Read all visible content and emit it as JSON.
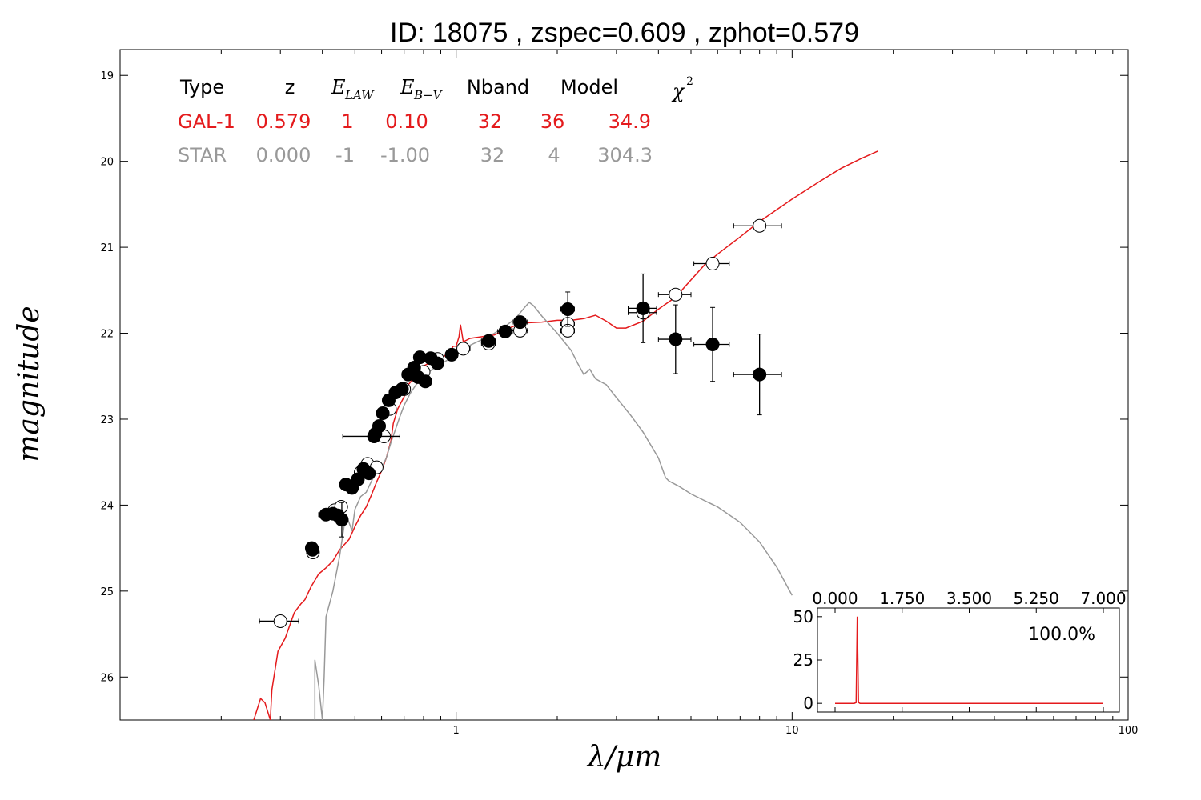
{
  "chart_data": [
    {
      "type": "scatter",
      "title": "ID:  18075 , zspec=0.609 , zphot=0.579",
      "xlabel": "λ/μm",
      "ylabel": "magnitude",
      "xscale": "log",
      "xlim": [
        0.1,
        100
      ],
      "ylim": [
        26.5,
        18.7
      ],
      "y_inverted": true,
      "xticks": [
        {
          "value": 1,
          "label": "1"
        },
        {
          "value": 10,
          "label": "10"
        },
        {
          "value": 100,
          "label": "100"
        }
      ],
      "yticks": [
        {
          "value": 19,
          "label": "19"
        },
        {
          "value": 20,
          "label": "20"
        },
        {
          "value": 21,
          "label": "21"
        },
        {
          "value": 22,
          "label": "22"
        },
        {
          "value": 23,
          "label": "23"
        },
        {
          "value": 24,
          "label": "24"
        },
        {
          "value": 25,
          "label": "25"
        },
        {
          "value": 26,
          "label": "26"
        }
      ],
      "grid": false,
      "fit_table": {
        "headers": [
          "Type",
          "z",
          "E_LAW",
          "E_B−V",
          "Nband",
          "Model",
          "χ²"
        ],
        "rows": [
          {
            "type": "GAL-1",
            "z": "0.579",
            "elaw": "1",
            "ebv": "0.10",
            "nband": "32",
            "model": "36",
            "chi2": "34.9"
          },
          {
            "type": "STAR",
            "z": "0.000",
            "elaw": "-1",
            "ebv": "-1.00",
            "nband": "32",
            "model": "4",
            "chi2": "304.3"
          }
        ]
      },
      "series": [
        {
          "name": "GAL-1",
          "kind": "line",
          "color": "#e41a1c",
          "points": [
            [
              0.25,
              26.5
            ],
            [
              0.262,
              26.25
            ],
            [
              0.27,
              26.3
            ],
            [
              0.28,
              26.5
            ],
            [
              0.283,
              26.15
            ],
            [
              0.295,
              25.7
            ],
            [
              0.31,
              25.55
            ],
            [
              0.33,
              25.25
            ],
            [
              0.345,
              25.15
            ],
            [
              0.355,
              25.1
            ],
            [
              0.37,
              24.95
            ],
            [
              0.39,
              24.8
            ],
            [
              0.41,
              24.73
            ],
            [
              0.43,
              24.65
            ],
            [
              0.45,
              24.52
            ],
            [
              0.48,
              24.4
            ],
            [
              0.5,
              24.25
            ],
            [
              0.52,
              24.12
            ],
            [
              0.54,
              24.02
            ],
            [
              0.56,
              23.88
            ],
            [
              0.58,
              23.73
            ],
            [
              0.6,
              23.6
            ],
            [
              0.62,
              23.45
            ],
            [
              0.64,
              23.25
            ],
            [
              0.65,
              23.05
            ],
            [
              0.67,
              22.88
            ],
            [
              0.7,
              22.74
            ],
            [
              0.72,
              22.6
            ],
            [
              0.75,
              22.52
            ],
            [
              0.78,
              22.44
            ],
            [
              0.8,
              22.38
            ],
            [
              0.83,
              22.35
            ],
            [
              0.86,
              22.36
            ],
            [
              0.89,
              22.31
            ],
            [
              0.92,
              22.27
            ],
            [
              0.94,
              22.24
            ],
            [
              0.96,
              22.22
            ],
            [
              0.98,
              22.15
            ],
            [
              1.0,
              22.15
            ],
            [
              1.02,
              22.04
            ],
            [
              1.03,
              21.9
            ],
            [
              1.05,
              22.1
            ],
            [
              1.1,
              22.06
            ],
            [
              1.2,
              22.04
            ],
            [
              1.3,
              22.02
            ],
            [
              1.4,
              21.96
            ],
            [
              1.5,
              21.91
            ],
            [
              1.6,
              21.88
            ],
            [
              1.8,
              21.87
            ],
            [
              2.0,
              21.85
            ],
            [
              2.2,
              21.85
            ],
            [
              2.4,
              21.83
            ],
            [
              2.6,
              21.79
            ],
            [
              2.8,
              21.86
            ],
            [
              3.0,
              21.94
            ],
            [
              3.2,
              21.94
            ],
            [
              3.6,
              21.86
            ],
            [
              4.0,
              21.72
            ],
            [
              4.5,
              21.58
            ],
            [
              5.0,
              21.38
            ],
            [
              5.5,
              21.2
            ],
            [
              6.0,
              21.08
            ],
            [
              7.0,
              20.88
            ],
            [
              8.0,
              20.7
            ],
            [
              10.0,
              20.44
            ],
            [
              12.0,
              20.24
            ],
            [
              14.0,
              20.08
            ],
            [
              16.0,
              19.97
            ],
            [
              18.0,
              19.88
            ]
          ]
        },
        {
          "name": "STAR",
          "kind": "line",
          "color": "#999999",
          "points": [
            [
              0.38,
              26.5
            ],
            [
              0.38,
              25.8
            ],
            [
              0.39,
              26.1
            ],
            [
              0.4,
              26.5
            ],
            [
              0.405,
              26.0
            ],
            [
              0.41,
              25.3
            ],
            [
              0.43,
              25.0
            ],
            [
              0.45,
              24.6
            ],
            [
              0.47,
              24.1
            ],
            [
              0.49,
              24.3
            ],
            [
              0.5,
              24.05
            ],
            [
              0.52,
              23.9
            ],
            [
              0.54,
              23.85
            ],
            [
              0.56,
              23.72
            ],
            [
              0.58,
              23.62
            ],
            [
              0.6,
              23.57
            ],
            [
              0.62,
              23.45
            ],
            [
              0.64,
              23.27
            ],
            [
              0.66,
              23.12
            ],
            [
              0.68,
              22.97
            ],
            [
              0.7,
              22.84
            ],
            [
              0.73,
              22.7
            ],
            [
              0.76,
              22.6
            ],
            [
              0.8,
              22.5
            ],
            [
              0.85,
              22.42
            ],
            [
              0.9,
              22.36
            ],
            [
              1.0,
              22.25
            ],
            [
              1.1,
              22.14
            ],
            [
              1.2,
              22.07
            ],
            [
              1.3,
              22.0
            ],
            [
              1.4,
              21.92
            ],
            [
              1.5,
              21.83
            ],
            [
              1.6,
              21.7
            ],
            [
              1.65,
              21.64
            ],
            [
              1.7,
              21.68
            ],
            [
              1.8,
              21.8
            ],
            [
              2.0,
              22.0
            ],
            [
              2.2,
              22.2
            ],
            [
              2.3,
              22.35
            ],
            [
              2.4,
              22.48
            ],
            [
              2.5,
              22.42
            ],
            [
              2.6,
              22.53
            ],
            [
              2.8,
              22.6
            ],
            [
              3.0,
              22.75
            ],
            [
              3.3,
              22.95
            ],
            [
              3.6,
              23.15
            ],
            [
              4.0,
              23.45
            ],
            [
              4.2,
              23.68
            ],
            [
              4.3,
              23.72
            ],
            [
              4.6,
              23.78
            ],
            [
              5.0,
              23.87
            ],
            [
              5.5,
              23.95
            ],
            [
              6.0,
              24.02
            ],
            [
              7.0,
              24.2
            ],
            [
              8.0,
              24.43
            ],
            [
              9.0,
              24.72
            ],
            [
              10.0,
              25.05
            ]
          ]
        },
        {
          "name": "observed",
          "kind": "points",
          "marker": "filled",
          "color": "#000000",
          "points": [
            {
              "x": 0.372,
              "y": 24.5,
              "xerr": 0,
              "yerr": 0.05
            },
            {
              "x": 0.374,
              "y": 24.52,
              "xerr": 0,
              "yerr": 0.05
            },
            {
              "x": 0.41,
              "y": 24.11,
              "xerr": 0.02,
              "yerr": 0.05
            },
            {
              "x": 0.43,
              "y": 24.1,
              "xerr": 0.015,
              "yerr": 0.05
            },
            {
              "x": 0.445,
              "y": 24.12,
              "xerr": 0.015,
              "yerr": 0.06
            },
            {
              "x": 0.457,
              "y": 24.17,
              "xerr": 0.01,
              "yerr": 0.2
            },
            {
              "x": 0.47,
              "y": 23.76,
              "xerr": 0.01,
              "yerr": 0.05
            },
            {
              "x": 0.49,
              "y": 23.8,
              "xerr": 0.01,
              "yerr": 0.05
            },
            {
              "x": 0.51,
              "y": 23.7,
              "xerr": 0.01,
              "yerr": 0.05
            },
            {
              "x": 0.53,
              "y": 23.58,
              "xerr": 0.01,
              "yerr": 0.05
            },
            {
              "x": 0.55,
              "y": 23.63,
              "xerr": 0.01,
              "yerr": 0.05
            },
            {
              "x": 0.57,
              "y": 23.2,
              "xerr": 0.11,
              "yerr": 0.02
            },
            {
              "x": 0.575,
              "y": 23.17,
              "xerr": 0.01,
              "yerr": 0.05
            },
            {
              "x": 0.59,
              "y": 23.08,
              "xerr": 0.01,
              "yerr": 0.05
            },
            {
              "x": 0.605,
              "y": 22.93,
              "xerr": 0.01,
              "yerr": 0.05
            },
            {
              "x": 0.63,
              "y": 22.78,
              "xerr": 0.01,
              "yerr": 0.05
            },
            {
              "x": 0.66,
              "y": 22.69,
              "xerr": 0.01,
              "yerr": 0.05
            },
            {
              "x": 0.69,
              "y": 22.65,
              "xerr": 0.01,
              "yerr": 0.05
            },
            {
              "x": 0.72,
              "y": 22.48,
              "xerr": 0.02,
              "yerr": 0.05
            },
            {
              "x": 0.75,
              "y": 22.4,
              "xerr": 0.02,
              "yerr": 0.05
            },
            {
              "x": 0.77,
              "y": 22.51,
              "xerr": 0.02,
              "yerr": 0.05
            },
            {
              "x": 0.78,
              "y": 22.28,
              "xerr": 0.02,
              "yerr": 0.05
            },
            {
              "x": 0.81,
              "y": 22.56,
              "xerr": 0.02,
              "yerr": 0.05
            },
            {
              "x": 0.84,
              "y": 22.29,
              "xerr": 0.02,
              "yerr": 0.05
            },
            {
              "x": 0.88,
              "y": 22.35,
              "xerr": 0.03,
              "yerr": 0.05
            },
            {
              "x": 0.97,
              "y": 22.25,
              "xerr": 0.04,
              "yerr": 0.05
            },
            {
              "x": 1.25,
              "y": 22.09,
              "xerr": 0.06,
              "yerr": 0.05
            },
            {
              "x": 1.4,
              "y": 21.98,
              "xerr": 0.07,
              "yerr": 0.05
            },
            {
              "x": 1.55,
              "y": 21.87,
              "xerr": 0.08,
              "yerr": 0.05
            },
            {
              "x": 2.15,
              "y": 21.72,
              "xerr": 0.1,
              "yerr": 0.2
            },
            {
              "x": 3.6,
              "y": 21.71,
              "xerr": 0.35,
              "yerr": 0.4
            },
            {
              "x": 4.5,
              "y": 22.07,
              "xerr": 0.5,
              "yerr": 0.4
            },
            {
              "x": 5.8,
              "y": 22.13,
              "xerr": 0.7,
              "yerr": 0.43
            },
            {
              "x": 8.0,
              "y": 22.48,
              "xerr": 1.3,
              "yerr": 0.47
            }
          ]
        },
        {
          "name": "model",
          "kind": "points",
          "marker": "open",
          "color": "#000000",
          "points": [
            {
              "x": 0.3,
              "y": 25.35,
              "xerr": 0.04,
              "yerr": 0
            },
            {
              "x": 0.375,
              "y": 24.55,
              "xerr": 0,
              "yerr": 0
            },
            {
              "x": 0.435,
              "y": 24.06,
              "xerr": 0.02,
              "yerr": 0
            },
            {
              "x": 0.455,
              "y": 24.02,
              "xerr": 0.015,
              "yerr": 0
            },
            {
              "x": 0.52,
              "y": 23.62,
              "xerr": 0.01,
              "yerr": 0
            },
            {
              "x": 0.545,
              "y": 23.52,
              "xerr": 0.01,
              "yerr": 0
            },
            {
              "x": 0.58,
              "y": 23.56,
              "xerr": 0.01,
              "yerr": 0
            },
            {
              "x": 0.61,
              "y": 23.2,
              "xerr": 0.01,
              "yerr": 0
            },
            {
              "x": 0.635,
              "y": 22.88,
              "xerr": 0.01,
              "yerr": 0
            },
            {
              "x": 0.7,
              "y": 22.65,
              "xerr": 0.01,
              "yerr": 0
            },
            {
              "x": 0.8,
              "y": 22.45,
              "xerr": 0.02,
              "yerr": 0
            },
            {
              "x": 0.88,
              "y": 22.3,
              "xerr": 0.02,
              "yerr": 0
            },
            {
              "x": 1.05,
              "y": 22.18,
              "xerr": 0.05,
              "yerr": 0
            },
            {
              "x": 1.25,
              "y": 22.12,
              "xerr": 0.06,
              "yerr": 0
            },
            {
              "x": 1.55,
              "y": 21.97,
              "xerr": 0.08,
              "yerr": 0
            },
            {
              "x": 2.15,
              "y": 21.89,
              "xerr": 0.1,
              "yerr": 0
            },
            {
              "x": 2.15,
              "y": 21.97,
              "xerr": 0.1,
              "yerr": 0
            },
            {
              "x": 3.6,
              "y": 21.76,
              "xerr": 0.35,
              "yerr": 0
            },
            {
              "x": 4.5,
              "y": 21.55,
              "xerr": 0.5,
              "yerr": 0
            },
            {
              "x": 5.8,
              "y": 21.19,
              "xerr": 0.7,
              "yerr": 0
            },
            {
              "x": 8.0,
              "y": 20.75,
              "xerr": 1.3,
              "yerr": 0
            }
          ]
        }
      ]
    },
    {
      "type": "line",
      "title": "",
      "annotation": "100.0%",
      "xlim": [
        0,
        7
      ],
      "ylim": [
        -5,
        55
      ],
      "xticks": [
        {
          "value": 0,
          "label": "0.000"
        },
        {
          "value": 1.75,
          "label": "1.750"
        },
        {
          "value": 3.5,
          "label": "3.500"
        },
        {
          "value": 5.25,
          "label": "5.250"
        },
        {
          "value": 7,
          "label": "7.000"
        }
      ],
      "yticks": [
        {
          "value": 0,
          "label": "0"
        },
        {
          "value": 25,
          "label": "25"
        },
        {
          "value": 50,
          "label": "50"
        }
      ],
      "series": [
        {
          "name": "PDF",
          "color": "#e41a1c",
          "points": [
            [
              0.0,
              0
            ],
            [
              0.5,
              0
            ],
            [
              0.55,
              0.5
            ],
            [
              0.579,
              50
            ],
            [
              0.61,
              0.5
            ],
            [
              0.65,
              0
            ],
            [
              7.0,
              0
            ]
          ]
        }
      ]
    }
  ]
}
